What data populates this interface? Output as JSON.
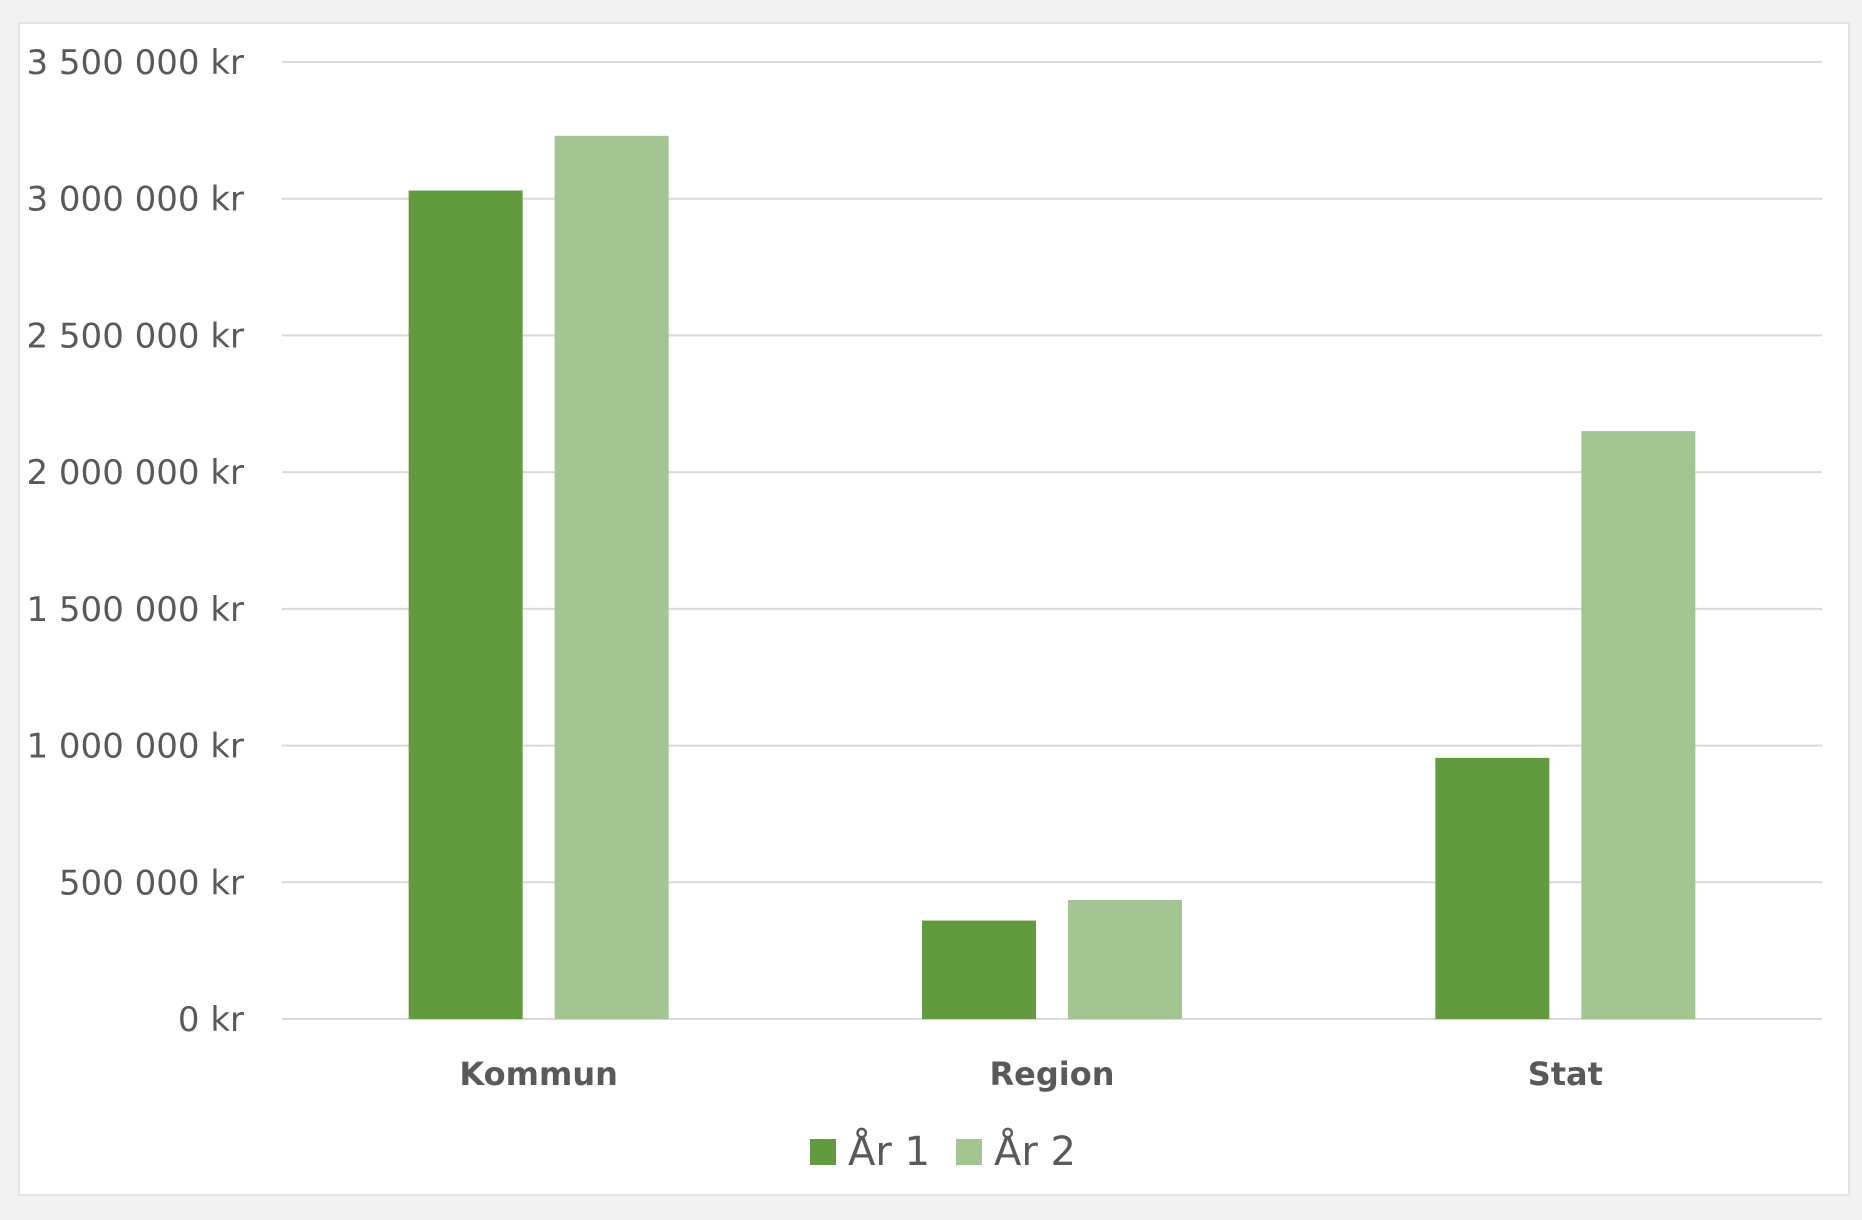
{
  "chart_data": {
    "type": "bar",
    "categories": [
      "Kommun",
      "Region",
      "Stat"
    ],
    "series": [
      {
        "name": "År 1",
        "color": "#629a3e",
        "values": [
          3030000,
          360000,
          955000
        ]
      },
      {
        "name": "År 2",
        "color": "#a3c591",
        "values": [
          3230000,
          435000,
          2150000
        ]
      }
    ],
    "ylim": [
      0,
      3500000
    ],
    "yticks": [
      0,
      500000,
      1000000,
      1500000,
      2000000,
      2500000,
      3000000,
      3500000
    ],
    "ytick_labels": [
      "0 kr",
      "500 000 kr",
      "1 000 000 kr",
      "1 500 000 kr",
      "2 000 000 kr",
      "2 500 000 kr",
      "3 000 000 kr",
      "3 500 000 kr"
    ],
    "title": "",
    "xlabel": "",
    "ylabel": "",
    "grid": true,
    "gridline_color": "#d9d9d9",
    "legend_position": "bottom"
  }
}
